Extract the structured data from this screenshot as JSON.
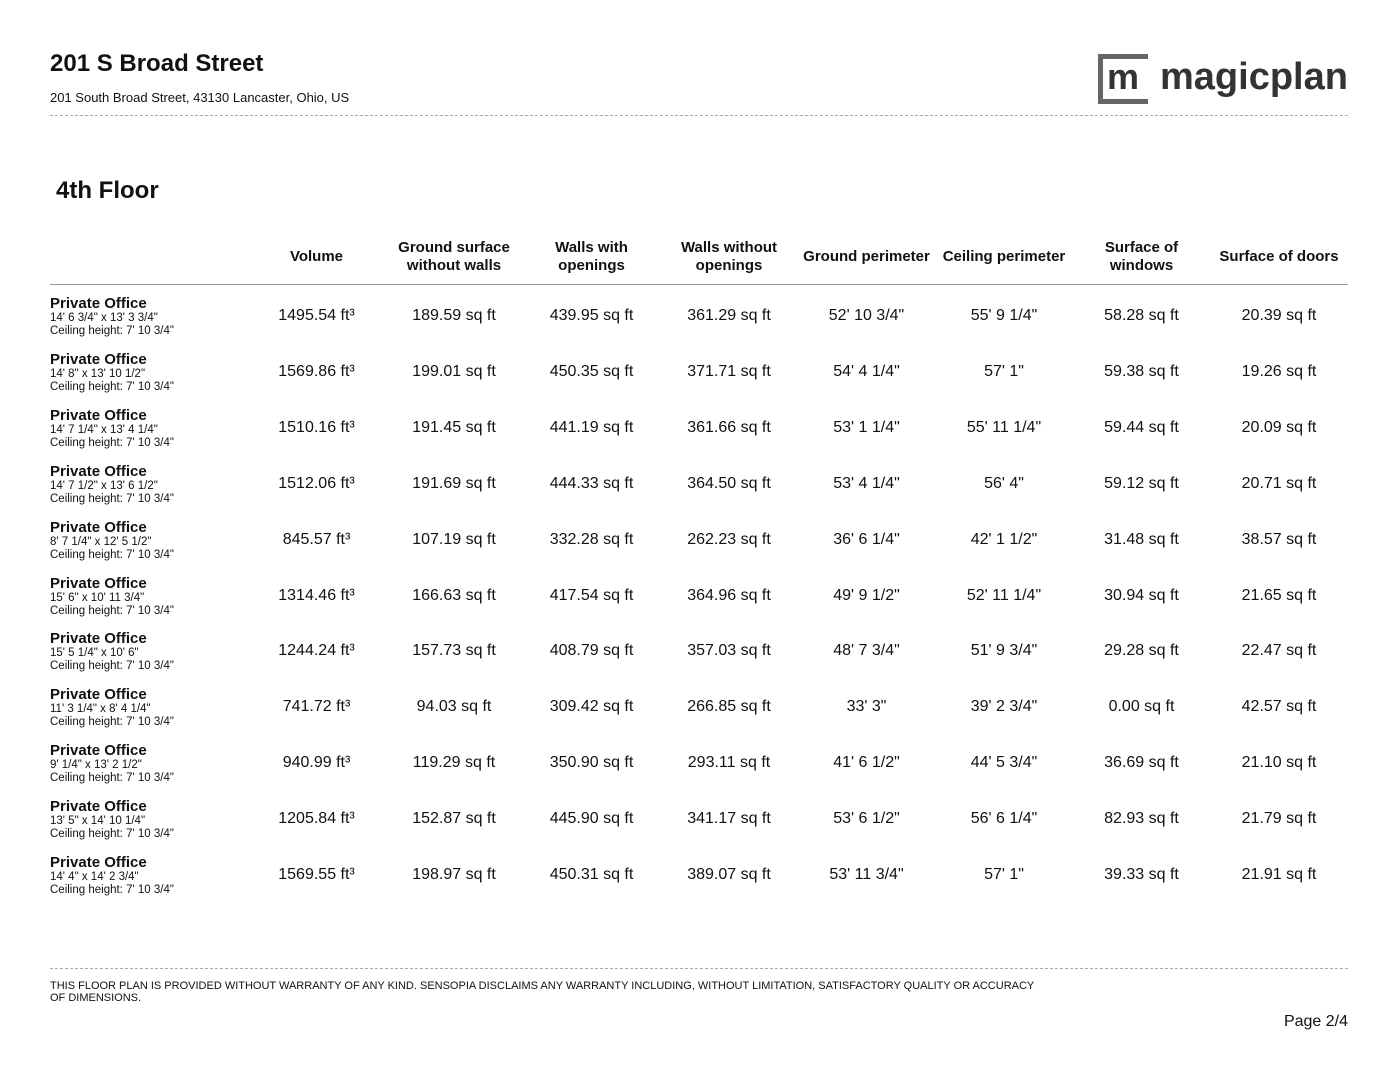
{
  "header": {
    "title": "201 S Broad Street",
    "address": "201 South Broad Street, 43130 Lancaster, Ohio, US",
    "logo_mark": "m",
    "logo_text": "magicplan"
  },
  "floor_title": "4th Floor",
  "table": {
    "columns": [
      "Volume",
      "Ground surface without walls",
      "Walls with openings",
      "Walls without openings",
      "Ground perimeter",
      "Ceiling perimeter",
      "Surface of windows",
      "Surface of doors"
    ],
    "rows": [
      {
        "name": "Private Office",
        "dimensions": "14' 6 3/4\" x 13' 3 3/4\"",
        "ceiling": "Ceiling height: 7' 10 3/4\"",
        "cells": [
          "1495.54 ft³",
          "189.59 sq ft",
          "439.95 sq ft",
          "361.29 sq ft",
          "52' 10 3/4\"",
          "55' 9 1/4\"",
          "58.28 sq ft",
          "20.39 sq ft"
        ]
      },
      {
        "name": "Private Office",
        "dimensions": "14' 8\" x 13' 10 1/2\"",
        "ceiling": "Ceiling height: 7' 10 3/4\"",
        "cells": [
          "1569.86 ft³",
          "199.01 sq ft",
          "450.35 sq ft",
          "371.71 sq ft",
          "54' 4 1/4\"",
          "57' 1\"",
          "59.38 sq ft",
          "19.26 sq ft"
        ]
      },
      {
        "name": "Private Office",
        "dimensions": "14' 7 1/4\" x 13' 4 1/4\"",
        "ceiling": "Ceiling height: 7' 10 3/4\"",
        "cells": [
          "1510.16 ft³",
          "191.45 sq ft",
          "441.19 sq ft",
          "361.66 sq ft",
          "53' 1 1/4\"",
          "55' 11 1/4\"",
          "59.44 sq ft",
          "20.09 sq ft"
        ]
      },
      {
        "name": "Private Office",
        "dimensions": "14' 7 1/2\" x 13' 6 1/2\"",
        "ceiling": "Ceiling height: 7' 10 3/4\"",
        "cells": [
          "1512.06 ft³",
          "191.69 sq ft",
          "444.33 sq ft",
          "364.50 sq ft",
          "53' 4 1/4\"",
          "56' 4\"",
          "59.12 sq ft",
          "20.71 sq ft"
        ]
      },
      {
        "name": "Private Office",
        "dimensions": "8' 7 1/4\" x 12' 5 1/2\"",
        "ceiling": "Ceiling height: 7' 10 3/4\"",
        "cells": [
          "845.57 ft³",
          "107.19 sq ft",
          "332.28 sq ft",
          "262.23 sq ft",
          "36' 6 1/4\"",
          "42' 1 1/2\"",
          "31.48 sq ft",
          "38.57 sq ft"
        ]
      },
      {
        "name": "Private Office",
        "dimensions": "15' 6\" x 10' 11 3/4\"",
        "ceiling": "Ceiling height: 7' 10 3/4\"",
        "cells": [
          "1314.46 ft³",
          "166.63 sq ft",
          "417.54 sq ft",
          "364.96 sq ft",
          "49' 9 1/2\"",
          "52' 11 1/4\"",
          "30.94 sq ft",
          "21.65 sq ft"
        ]
      },
      {
        "name": "Private Office",
        "dimensions": "15' 5 1/4\" x 10' 6\"",
        "ceiling": "Ceiling height: 7' 10 3/4\"",
        "cells": [
          "1244.24 ft³",
          "157.73 sq ft",
          "408.79 sq ft",
          "357.03 sq ft",
          "48' 7 3/4\"",
          "51' 9 3/4\"",
          "29.28 sq ft",
          "22.47 sq ft"
        ]
      },
      {
        "name": "Private Office",
        "dimensions": "11' 3 1/4\" x 8' 4 1/4\"",
        "ceiling": "Ceiling height: 7' 10 3/4\"",
        "cells": [
          "741.72 ft³",
          "94.03 sq ft",
          "309.42 sq ft",
          "266.85 sq ft",
          "33' 3\"",
          "39' 2 3/4\"",
          "0.00 sq ft",
          "42.57 sq ft"
        ]
      },
      {
        "name": "Private Office",
        "dimensions": "9' 1/4\" x 13' 2 1/2\"",
        "ceiling": "Ceiling height: 7' 10 3/4\"",
        "cells": [
          "940.99 ft³",
          "119.29 sq ft",
          "350.90 sq ft",
          "293.11 sq ft",
          "41' 6 1/2\"",
          "44' 5 3/4\"",
          "36.69 sq ft",
          "21.10 sq ft"
        ]
      },
      {
        "name": "Private Office",
        "dimensions": "13' 5\" x 14' 10 1/4\"",
        "ceiling": "Ceiling height: 7' 10 3/4\"",
        "cells": [
          "1205.84 ft³",
          "152.87 sq ft",
          "445.90 sq ft",
          "341.17 sq ft",
          "53' 6 1/2\"",
          "56' 6 1/4\"",
          "82.93 sq ft",
          "21.79 sq ft"
        ]
      },
      {
        "name": "Private Office",
        "dimensions": "14' 4\" x 14' 2 3/4\"",
        "ceiling": "Ceiling height: 7' 10 3/4\"",
        "cells": [
          "1569.55 ft³",
          "198.97 sq ft",
          "450.31 sq ft",
          "389.07 sq ft",
          "53' 11 3/4\"",
          "57' 1\"",
          "39.33 sq ft",
          "21.91 sq ft"
        ]
      }
    ]
  },
  "footer": {
    "disclaimer": "THIS FLOOR PLAN IS PROVIDED WITHOUT WARRANTY OF ANY KIND. SENSOPIA DISCLAIMS ANY WARRANTY INCLUDING, WITHOUT LIMITATION, SATISFACTORY QUALITY OR ACCURACY OF DIMENSIONS.",
    "page": "Page 2/4"
  }
}
